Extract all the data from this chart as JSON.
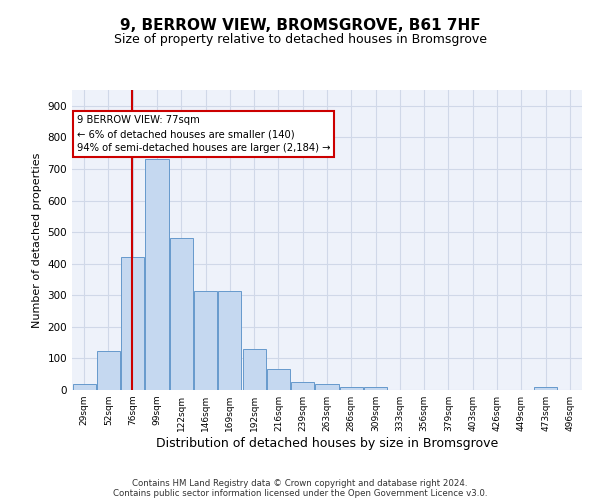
{
  "title": "9, BERROW VIEW, BROMSGROVE, B61 7HF",
  "subtitle": "Size of property relative to detached houses in Bromsgrove",
  "xlabel": "Distribution of detached houses by size in Bromsgrove",
  "ylabel": "Number of detached properties",
  "categories": [
    "29sqm",
    "52sqm",
    "76sqm",
    "99sqm",
    "122sqm",
    "146sqm",
    "169sqm",
    "192sqm",
    "216sqm",
    "239sqm",
    "263sqm",
    "286sqm",
    "309sqm",
    "333sqm",
    "356sqm",
    "379sqm",
    "403sqm",
    "426sqm",
    "449sqm",
    "473sqm",
    "496sqm"
  ],
  "values": [
    18,
    122,
    420,
    730,
    480,
    315,
    315,
    130,
    65,
    25,
    20,
    10,
    8,
    0,
    0,
    0,
    0,
    0,
    0,
    8,
    0
  ],
  "bar_color": "#c5d8f0",
  "bar_edge_color": "#6699cc",
  "grid_color": "#d0d8e8",
  "annotation_text": "9 BERROW VIEW: 77sqm\n← 6% of detached houses are smaller (140)\n94% of semi-detached houses are larger (2,184) →",
  "annotation_box_color": "#cc0000",
  "vline_color": "#cc0000",
  "ylim": [
    0,
    950
  ],
  "yticks": [
    0,
    100,
    200,
    300,
    400,
    500,
    600,
    700,
    800,
    900
  ],
  "footer1": "Contains HM Land Registry data © Crown copyright and database right 2024.",
  "footer2": "Contains public sector information licensed under the Open Government Licence v3.0.",
  "title_fontsize": 11,
  "subtitle_fontsize": 9,
  "xlabel_fontsize": 9,
  "ylabel_fontsize": 8,
  "background_color": "#eef2fa"
}
